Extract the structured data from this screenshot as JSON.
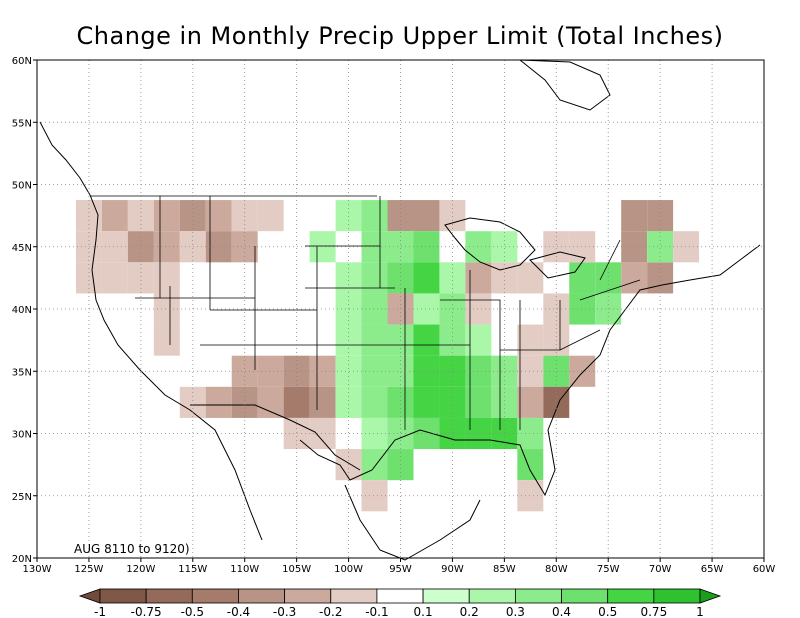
{
  "title": "Change in Monthly Precip Upper Limit (Total Inches)",
  "period_label": "AUG 8110 to 9120)",
  "map": {
    "lon_range": [
      -130,
      -60
    ],
    "lat_range": [
      20,
      60
    ],
    "grid": true,
    "lon_ticks": [
      "130W",
      "125W",
      "120W",
      "115W",
      "110W",
      "105W",
      "100W",
      "95W",
      "90W",
      "85W",
      "80W",
      "75W",
      "70W",
      "65W",
      "60W"
    ],
    "lat_ticks": [
      "20N",
      "25N",
      "30N",
      "35N",
      "40N",
      "45N",
      "50N",
      "55N",
      "60N"
    ]
  },
  "colorbar": {
    "labels": [
      "-1",
      "-0.75",
      "-0.5",
      "-0.4",
      "-0.3",
      "-0.2",
      "-0.1",
      "0.1",
      "0.2",
      "0.3",
      "0.4",
      "0.5",
      "0.75",
      "1"
    ],
    "colors": [
      "#704a3a",
      "#805847",
      "#946a5a",
      "#a57c6c",
      "#b79485",
      "#cba99c",
      "#e3ccc3",
      "#ffffff",
      "#ccffcc",
      "#aaf7aa",
      "#8cec8c",
      "#6ee06e",
      "#44d444",
      "#2fc22f",
      "#1b9e1b"
    ]
  },
  "cells": [
    {
      "lon": -125,
      "lat": 47.5,
      "v": -0.2
    },
    {
      "lon": -125,
      "lat": 45,
      "v": -0.2
    },
    {
      "lon": -125,
      "lat": 42.5,
      "v": -0.2
    },
    {
      "lon": -122.5,
      "lat": 47.5,
      "v": -0.3
    },
    {
      "lon": -122.5,
      "lat": 45,
      "v": -0.2
    },
    {
      "lon": -122.5,
      "lat": 42.5,
      "v": -0.2
    },
    {
      "lon": -120,
      "lat": 47.5,
      "v": -0.2
    },
    {
      "lon": -120,
      "lat": 45,
      "v": -0.4
    },
    {
      "lon": -120,
      "lat": 42.5,
      "v": -0.2
    },
    {
      "lon": -117.5,
      "lat": 47.5,
      "v": -0.3
    },
    {
      "lon": -117.5,
      "lat": 45,
      "v": -0.3
    },
    {
      "lon": -117.5,
      "lat": 42.5,
      "v": -0.2
    },
    {
      "lon": -115,
      "lat": 47.5,
      "v": -0.4
    },
    {
      "lon": -115,
      "lat": 45,
      "v": -0.2
    },
    {
      "lon": -112.5,
      "lat": 47.5,
      "v": -0.3
    },
    {
      "lon": -112.5,
      "lat": 45,
      "v": -0.4
    },
    {
      "lon": -110,
      "lat": 47.5,
      "v": -0.2
    },
    {
      "lon": -110,
      "lat": 45,
      "v": -0.3
    },
    {
      "lon": -107.5,
      "lat": 47.5,
      "v": -0.2
    },
    {
      "lon": -117.5,
      "lat": 40,
      "v": -0.2
    },
    {
      "lon": -117.5,
      "lat": 37.5,
      "v": -0.2
    },
    {
      "lon": -102.5,
      "lat": 45,
      "v": 0.2
    },
    {
      "lon": -100,
      "lat": 47.5,
      "v": 0.2
    },
    {
      "lon": -97.5,
      "lat": 47.5,
      "v": 0.3
    },
    {
      "lon": -95,
      "lat": 47.5,
      "v": -0.4
    },
    {
      "lon": -92.5,
      "lat": 47.5,
      "v": -0.4
    },
    {
      "lon": -90,
      "lat": 47.5,
      "v": -0.2
    },
    {
      "lon": -97.5,
      "lat": 45,
      "v": 0.3
    },
    {
      "lon": -95,
      "lat": 45,
      "v": 0.3
    },
    {
      "lon": -92.5,
      "lat": 45,
      "v": 0.4
    },
    {
      "lon": -100,
      "lat": 42.5,
      "v": 0.2
    },
    {
      "lon": -97.5,
      "lat": 42.5,
      "v": 0.3
    },
    {
      "lon": -95,
      "lat": 42.5,
      "v": 0.4
    },
    {
      "lon": -92.5,
      "lat": 42.5,
      "v": 0.5
    },
    {
      "lon": -90,
      "lat": 42.5,
      "v": 0.2
    },
    {
      "lon": -87.5,
      "lat": 42.5,
      "v": -0.3
    },
    {
      "lon": -85,
      "lat": 42.5,
      "v": -0.2
    },
    {
      "lon": -82.5,
      "lat": 42.5,
      "v": -0.2
    },
    {
      "lon": -87.5,
      "lat": 45,
      "v": 0.3
    },
    {
      "lon": -85,
      "lat": 45,
      "v": 0.2
    },
    {
      "lon": -100,
      "lat": 40,
      "v": 0.2
    },
    {
      "lon": -97.5,
      "lat": 40,
      "v": 0.3
    },
    {
      "lon": -95,
      "lat": 40,
      "v": -0.3
    },
    {
      "lon": -92.5,
      "lat": 40,
      "v": 0.2
    },
    {
      "lon": -90,
      "lat": 40,
      "v": 0.3
    },
    {
      "lon": -87.5,
      "lat": 40,
      "v": -0.2
    },
    {
      "lon": -80,
      "lat": 40,
      "v": -0.2
    },
    {
      "lon": -77.5,
      "lat": 40,
      "v": 0.4
    },
    {
      "lon": -75,
      "lat": 40,
      "v": 0.3
    },
    {
      "lon": -77.5,
      "lat": 42.5,
      "v": 0.4
    },
    {
      "lon": -75,
      "lat": 42.5,
      "v": 0.4
    },
    {
      "lon": -72.5,
      "lat": 42.5,
      "v": -0.3
    },
    {
      "lon": -70,
      "lat": 42.5,
      "v": -0.4
    },
    {
      "lon": -72.5,
      "lat": 45,
      "v": -0.4
    },
    {
      "lon": -70,
      "lat": 45,
      "v": 0.3
    },
    {
      "lon": -72.5,
      "lat": 47.5,
      "v": -0.4
    },
    {
      "lon": -70,
      "lat": 47.5,
      "v": -0.4
    },
    {
      "lon": -67.5,
      "lat": 45,
      "v": -0.2
    },
    {
      "lon": -80,
      "lat": 45,
      "v": -0.2
    },
    {
      "lon": -77.5,
      "lat": 45,
      "v": -0.2
    },
    {
      "lon": -100,
      "lat": 37.5,
      "v": 0.2
    },
    {
      "lon": -97.5,
      "lat": 37.5,
      "v": 0.3
    },
    {
      "lon": -95,
      "lat": 37.5,
      "v": 0.3
    },
    {
      "lon": -92.5,
      "lat": 37.5,
      "v": 0.5
    },
    {
      "lon": -90,
      "lat": 37.5,
      "v": 0.3
    },
    {
      "lon": -87.5,
      "lat": 37.5,
      "v": 0.2
    },
    {
      "lon": -82.5,
      "lat": 37.5,
      "v": -0.2
    },
    {
      "lon": -80,
      "lat": 37.5,
      "v": -0.2
    },
    {
      "lon": -110,
      "lat": 35,
      "v": -0.3
    },
    {
      "lon": -107.5,
      "lat": 35,
      "v": -0.3
    },
    {
      "lon": -105,
      "lat": 35,
      "v": -0.4
    },
    {
      "lon": -102.5,
      "lat": 35,
      "v": -0.3
    },
    {
      "lon": -100,
      "lat": 35,
      "v": 0.2
    },
    {
      "lon": -97.5,
      "lat": 35,
      "v": 0.3
    },
    {
      "lon": -95,
      "lat": 35,
      "v": 0.3
    },
    {
      "lon": -92.5,
      "lat": 35,
      "v": 0.5
    },
    {
      "lon": -90,
      "lat": 35,
      "v": 0.5
    },
    {
      "lon": -87.5,
      "lat": 35,
      "v": 0.4
    },
    {
      "lon": -85,
      "lat": 35,
      "v": 0.3
    },
    {
      "lon": -82.5,
      "lat": 35,
      "v": -0.2
    },
    {
      "lon": -80,
      "lat": 35,
      "v": 0.4
    },
    {
      "lon": -77.5,
      "lat": 35,
      "v": -0.3
    },
    {
      "lon": -115,
      "lat": 32.5,
      "v": -0.2
    },
    {
      "lon": -112.5,
      "lat": 32.5,
      "v": -0.3
    },
    {
      "lon": -110,
      "lat": 32.5,
      "v": -0.4
    },
    {
      "lon": -107.5,
      "lat": 32.5,
      "v": -0.3
    },
    {
      "lon": -105,
      "lat": 32.5,
      "v": -0.5
    },
    {
      "lon": -102.5,
      "lat": 32.5,
      "v": -0.4
    },
    {
      "lon": -100,
      "lat": 32.5,
      "v": 0.2
    },
    {
      "lon": -97.5,
      "lat": 32.5,
      "v": 0.3
    },
    {
      "lon": -95,
      "lat": 32.5,
      "v": 0.4
    },
    {
      "lon": -92.5,
      "lat": 32.5,
      "v": 0.5
    },
    {
      "lon": -90,
      "lat": 32.5,
      "v": 0.5
    },
    {
      "lon": -87.5,
      "lat": 32.5,
      "v": 0.4
    },
    {
      "lon": -85,
      "lat": 32.5,
      "v": 0.3
    },
    {
      "lon": -82.5,
      "lat": 32.5,
      "v": -0.3
    },
    {
      "lon": -80,
      "lat": 32.5,
      "v": -0.75
    },
    {
      "lon": -97.5,
      "lat": 30,
      "v": 0.2
    },
    {
      "lon": -95,
      "lat": 30,
      "v": 0.3
    },
    {
      "lon": -92.5,
      "lat": 30,
      "v": 0.4
    },
    {
      "lon": -90,
      "lat": 30,
      "v": 0.5
    },
    {
      "lon": -87.5,
      "lat": 30,
      "v": 0.5
    },
    {
      "lon": -85,
      "lat": 30,
      "v": 0.5
    },
    {
      "lon": -82.5,
      "lat": 30,
      "v": 0.3
    },
    {
      "lon": -105,
      "lat": 30,
      "v": -0.2
    },
    {
      "lon": -102.5,
      "lat": 30,
      "v": -0.2
    },
    {
      "lon": -100,
      "lat": 27.5,
      "v": -0.2
    },
    {
      "lon": -97.5,
      "lat": 27.5,
      "v": 0.3
    },
    {
      "lon": -95,
      "lat": 27.5,
      "v": 0.4
    },
    {
      "lon": -82.5,
      "lat": 27.5,
      "v": 0.4
    },
    {
      "lon": -97.5,
      "lat": 25,
      "v": -0.2
    },
    {
      "lon": -82.5,
      "lat": 25,
      "v": -0.2
    }
  ]
}
